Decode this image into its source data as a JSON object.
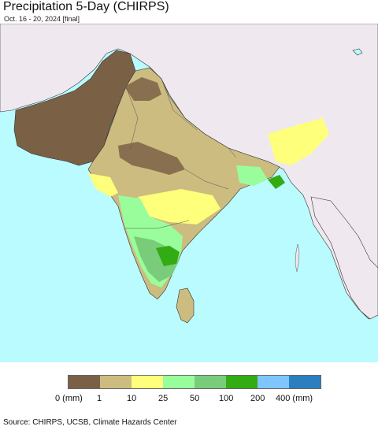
{
  "title": "Precipitation 5-Day (CHIRPS)",
  "subtitle": "Oct. 16 - 20, 2024 [final]",
  "colors": {
    "sea": "#b9fbff",
    "land_outside": "#efe9ef",
    "border": "#222222"
  },
  "legend": {
    "colors": [
      "#7a6146",
      "#ccbc80",
      "#feff7a",
      "#9afd9b",
      "#79cc79",
      "#33ab13",
      "#7fc6ff",
      "#2c7fbf"
    ],
    "tick_labels": [
      "0 (mm)",
      "1",
      "10",
      "25",
      "50",
      "100",
      "200",
      "400 (mm)"
    ]
  },
  "source": "Source: CHIRPS, UCSB, Climate Hazards Center"
}
